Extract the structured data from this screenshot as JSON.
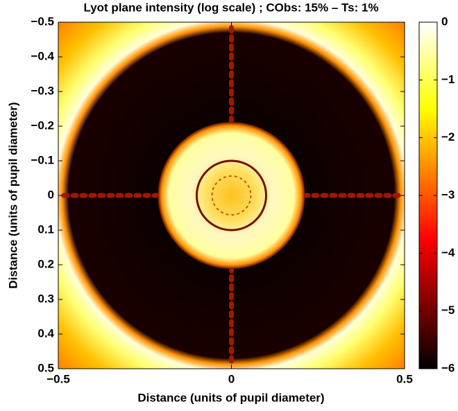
{
  "chart_data": {
    "type": "image",
    "title": "Lyot plane intensity (log scale) ; CObs: 15% – Ts: 1%",
    "xlabel": "Distance (units of pupil diameter)",
    "ylabel": "Distance (units of pupil diameter)",
    "xlim": [
      -0.5,
      0.5
    ],
    "ylim": [
      -0.5,
      0.5
    ],
    "y_reversed": true,
    "xticks": [
      {
        "value": -0.5,
        "label": "−0.5"
      },
      0,
      0.5
    ],
    "yticks": [
      {
        "value": -0.5,
        "label": "−0.5"
      },
      {
        "value": -0.4,
        "label": "−0.4"
      },
      {
        "value": -0.3,
        "label": "−0.3"
      },
      {
        "value": -0.2,
        "label": "−0.2"
      },
      {
        "value": -0.1,
        "label": "−0.1"
      },
      0,
      0.1,
      0.2,
      0.3,
      0.4,
      0.5
    ],
    "colormap": "hot",
    "colorbar": {
      "clim": [
        -6,
        0
      ],
      "ticks": [
        0,
        {
          "value": -1,
          "label": "−1"
        },
        {
          "value": -2,
          "label": "−2"
        },
        {
          "value": -3,
          "label": "−3"
        },
        {
          "value": -4,
          "label": "−4"
        },
        {
          "value": -5,
          "label": "−5"
        },
        {
          "value": -6,
          "label": "−6"
        }
      ]
    }
  }
}
